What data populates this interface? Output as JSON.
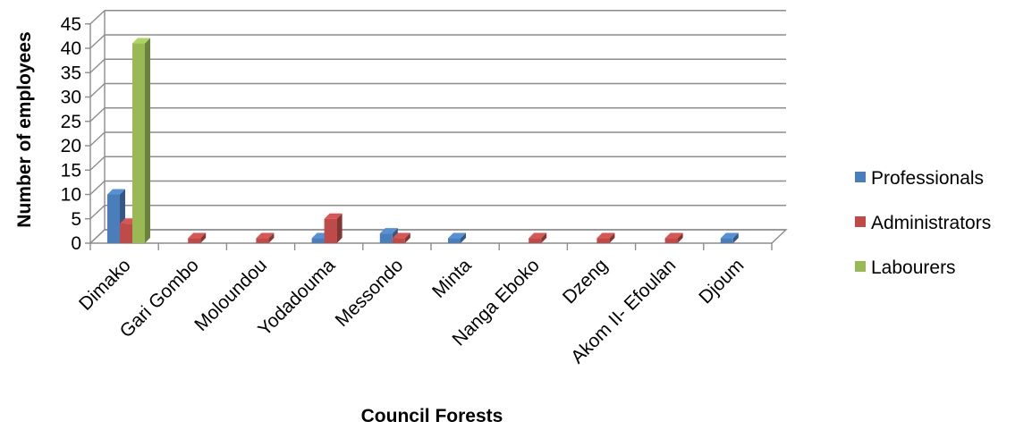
{
  "chart_data": {
    "type": "bar",
    "title": "",
    "xlabel": "Council Forests",
    "ylabel": "Number of employees",
    "ylim": [
      0,
      45
    ],
    "yticks": [
      0,
      5,
      10,
      15,
      20,
      25,
      30,
      35,
      40,
      45
    ],
    "grid": true,
    "legend_position": "right",
    "categories": [
      "Dimako",
      "Gari Gombo",
      "Moloundou",
      "Yodadouma",
      "Messondo",
      "Minta",
      "Nanga Eboko",
      "Dzeng",
      "Akom II- Efoulan",
      "Djoum"
    ],
    "series": [
      {
        "name": "Professionals",
        "color": "#4a7ebb",
        "values": [
          10,
          0,
          0,
          1,
          2,
          1,
          0,
          0,
          0,
          1
        ]
      },
      {
        "name": "Administrators",
        "color": "#be4b48",
        "values": [
          4,
          1,
          1,
          5,
          1,
          0,
          1,
          1,
          1,
          0
        ]
      },
      {
        "name": "Labourers",
        "color": "#98b954",
        "values": [
          41,
          0,
          0,
          0,
          0,
          0,
          0,
          0,
          0,
          0
        ]
      }
    ]
  }
}
